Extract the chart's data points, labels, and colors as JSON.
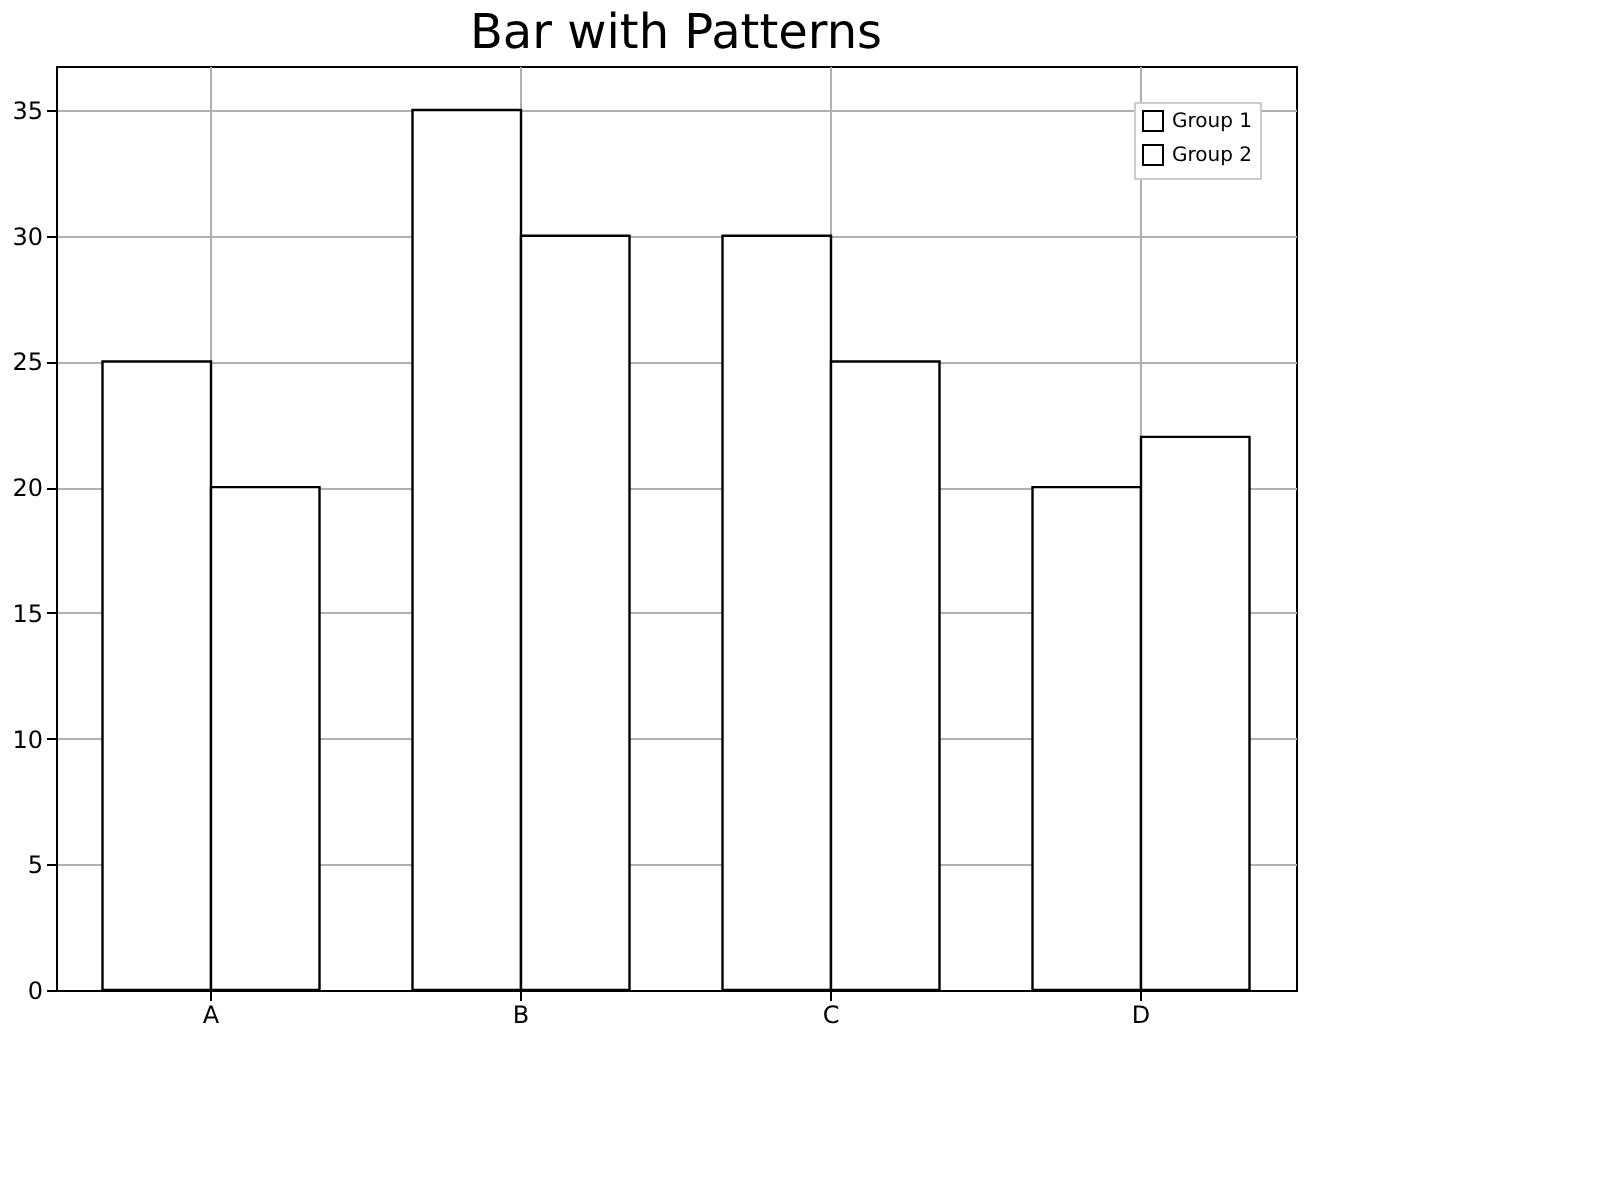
{
  "chart_data": {
    "type": "bar",
    "title": "Bar with Patterns",
    "categories": [
      "A",
      "B",
      "C",
      "D"
    ],
    "series": [
      {
        "name": "Group 1",
        "color": "#ffffff",
        "values": [
          25,
          35,
          30,
          20
        ]
      },
      {
        "name": "Group 2",
        "color": "#ffffff",
        "values": [
          20,
          30,
          25,
          22
        ]
      }
    ],
    "ylim": [
      0,
      36.75
    ],
    "yticks": [
      0,
      5,
      10,
      15,
      20,
      25,
      30,
      35
    ],
    "grid": true,
    "legend": "top right"
  }
}
